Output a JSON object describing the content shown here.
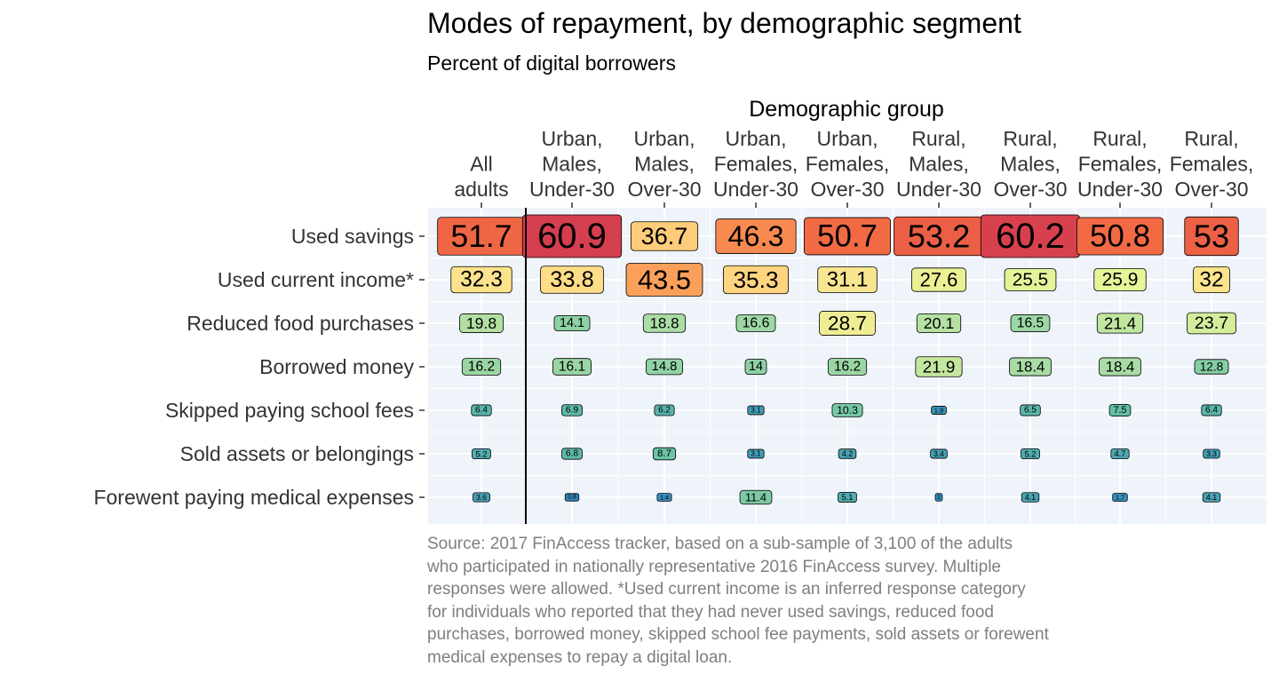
{
  "chart_data": {
    "type": "heatmap",
    "title": "Modes of repayment, by demographic segment",
    "subtitle": "Percent of digital borrowers",
    "x_axis_title": "Demographic group",
    "x_axis_position": "top",
    "columns": [
      [
        "All",
        "adults"
      ],
      [
        "Urban,",
        "Males,",
        "Under-30"
      ],
      [
        "Urban,",
        "Males,",
        "Over-30"
      ],
      [
        "Urban,",
        "Females,",
        "Under-30"
      ],
      [
        "Urban,",
        "Females,",
        "Over-30"
      ],
      [
        "Rural,",
        "Males,",
        "Under-30"
      ],
      [
        "Rural,",
        "Males,",
        "Over-30"
      ],
      [
        "Rural,",
        "Females,",
        "Under-30"
      ],
      [
        "Rural,",
        "Females,",
        "Over-30"
      ]
    ],
    "rows": [
      "Used savings",
      "Used current income*",
      "Reduced food purchases",
      "Borrowed money",
      "Skipped paying school fees",
      "Sold assets or belongings",
      "Forewent paying medical expenses"
    ],
    "values": [
      [
        51.7,
        60.9,
        36.7,
        46.3,
        50.7,
        53.2,
        60.2,
        50.8,
        53
      ],
      [
        32.3,
        33.8,
        43.5,
        35.3,
        31.1,
        27.6,
        25.5,
        25.9,
        32
      ],
      [
        19.8,
        14.1,
        18.8,
        16.6,
        28.7,
        20.1,
        16.5,
        21.4,
        23.7
      ],
      [
        16.2,
        16.1,
        14.8,
        14,
        16.2,
        21.9,
        18.4,
        18.4,
        12.8
      ],
      [
        6.4,
        6.9,
        6.2,
        3.1,
        10.3,
        1.9,
        6.5,
        7.5,
        6.4
      ],
      [
        5.2,
        6.8,
        8.7,
        3.1,
        4.2,
        3.4,
        5.2,
        4.7,
        3.3
      ],
      [
        3.6,
        0.8,
        1.4,
        11.4,
        5.1,
        1,
        4.1,
        1.7,
        4.1
      ]
    ],
    "color_scale": "Spectral (reversed): low blue, mid yellow, high red",
    "separator_after_column": 1,
    "grid": true,
    "legend": "none",
    "caption_lines": [
      "Source: 2017 FinAccess tracker, based on a sub-sample of 3,100 of the adults",
      "who participated in nationally representative 2016 FinAccess survey. Multiple",
      "responses were allowed. *Used current income is an inferred response category",
      "for individuals who reported that they had never used savings, reduced food",
      "purchases, borrowed money, skipped school fee payments, sold assets or forewent",
      "medical expenses to repay a digital loan."
    ]
  }
}
